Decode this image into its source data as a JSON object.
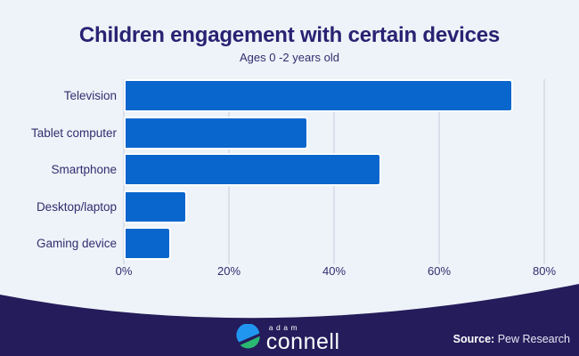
{
  "chart_data": {
    "type": "bar",
    "orientation": "horizontal",
    "title": "Children engagement with certain devices",
    "subtitle": "Ages 0 -2 years old",
    "categories": [
      "Television",
      "Tablet computer",
      "Smartphone",
      "Desktop/laptop",
      "Gaming device"
    ],
    "values": [
      74,
      35,
      49,
      12,
      9
    ],
    "value_unit": "%",
    "x_ticks": [
      "0%",
      "20%",
      "40%",
      "60%",
      "80%"
    ],
    "x_tick_values": [
      0,
      20,
      40,
      60,
      80
    ],
    "xlim": [
      0,
      80
    ],
    "grid": "vertical-gridlines",
    "legend": "none"
  },
  "colors": {
    "background": "#edf3f8",
    "bar": "#0966cc",
    "bar_border": "#ffffff",
    "gridline": "#c7cbda",
    "title_text": "#2a2173",
    "axis_text": "#332d70",
    "footer_bg": "#251c5b",
    "logo_blue": "#2196f0",
    "logo_green": "#2ab873"
  },
  "footer": {
    "brand_top": "adam",
    "brand_bottom": "connell",
    "source_label": "Source:",
    "source_value": "Pew Research"
  }
}
